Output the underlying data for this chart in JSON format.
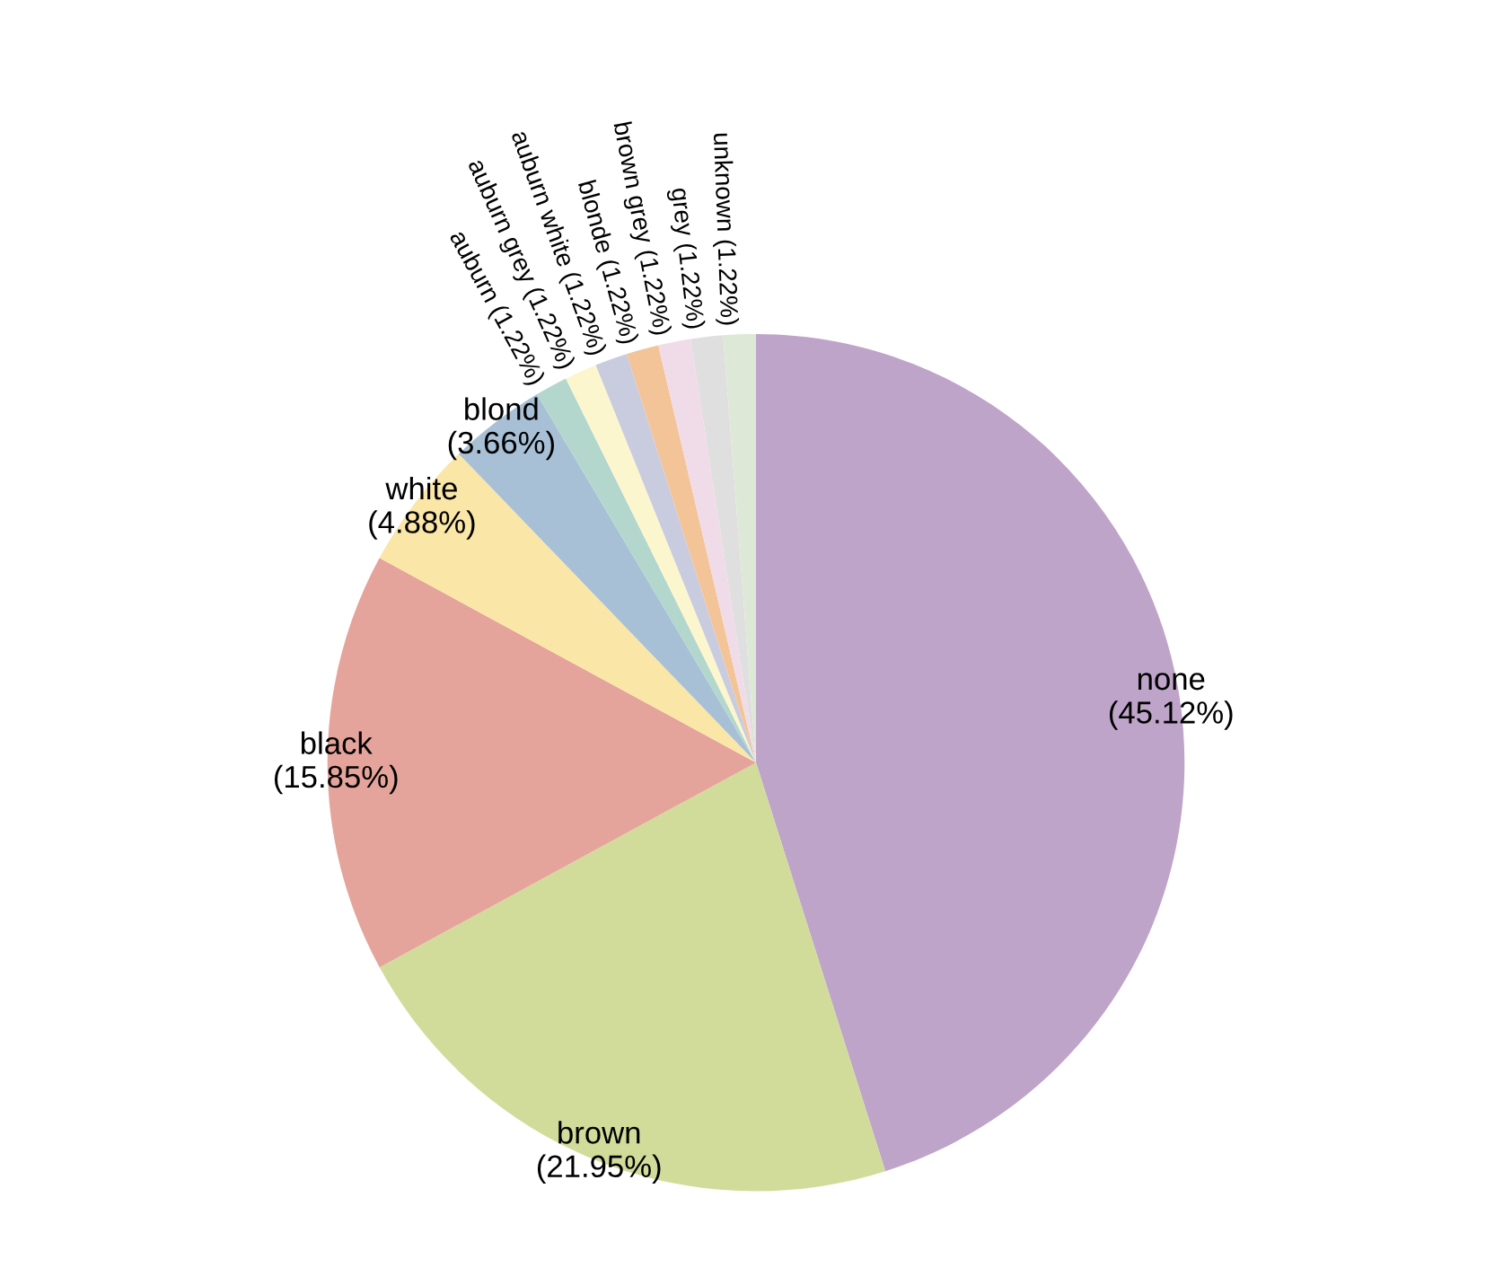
{
  "chart_data": {
    "type": "pie",
    "categories": [
      "none",
      "brown",
      "black",
      "white",
      "blond",
      "auburn",
      "auburn grey",
      "auburn white",
      "blonde",
      "brown grey",
      "grey",
      "unknown"
    ],
    "values": [
      45.12,
      21.95,
      15.85,
      4.88,
      3.66,
      1.22,
      1.22,
      1.22,
      1.22,
      1.22,
      1.22,
      1.22
    ],
    "value_labels": [
      "(45.12%)",
      "(21.95%)",
      "(15.85%)",
      "(4.88%)",
      "(3.66%)",
      "(1.22%)",
      "(1.22%)",
      "(1.22%)",
      "(1.22%)",
      "(1.22%)",
      "(1.22%)",
      "(1.22%)"
    ],
    "colors": [
      "#bfa4c9",
      "#d1dc9b",
      "#e5a49b",
      "#fae6a7",
      "#a8c0d6",
      "#b3d7cc",
      "#fcf6cf",
      "#c9cbdf",
      "#f2c498",
      "#f0dce8",
      "#e0dfdf",
      "#dde9d6"
    ],
    "legend": false
  }
}
